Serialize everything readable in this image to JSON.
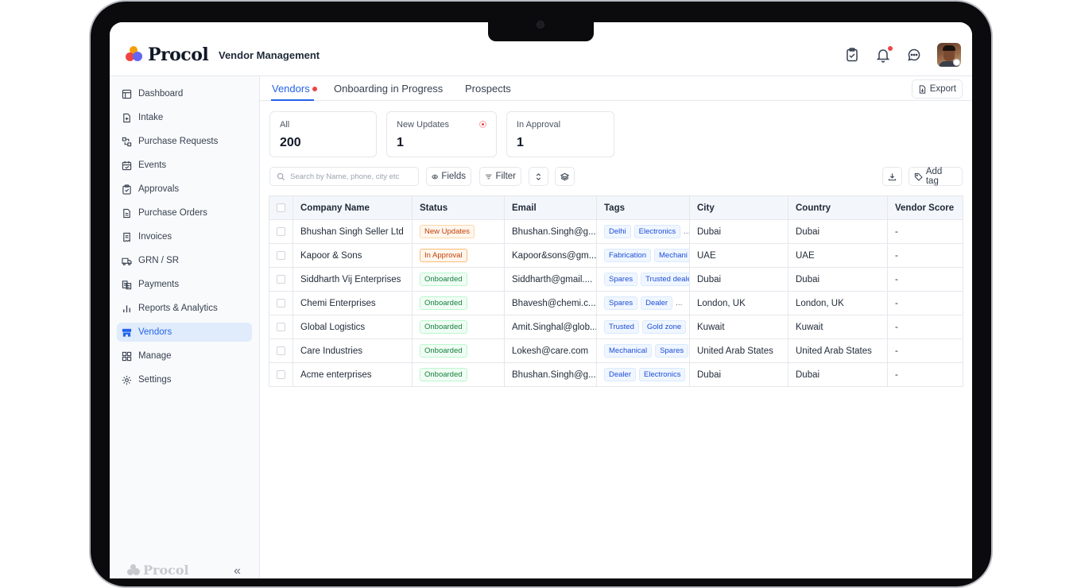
{
  "app": {
    "brand": "Procol",
    "title": "Vendor Management"
  },
  "sidebar": {
    "items": [
      {
        "label": "Dashboard",
        "icon": "dashboard-icon"
      },
      {
        "label": "Intake",
        "icon": "intake-icon"
      },
      {
        "label": "Purchase Requests",
        "icon": "purchase-requests-icon"
      },
      {
        "label": "Events",
        "icon": "events-icon"
      },
      {
        "label": "Approvals",
        "icon": "approvals-icon"
      },
      {
        "label": "Purchase Orders",
        "icon": "purchase-orders-icon"
      },
      {
        "label": "Invoices",
        "icon": "invoices-icon"
      },
      {
        "label": "GRN / SR",
        "icon": "truck-icon"
      },
      {
        "label": "Payments",
        "icon": "payments-icon"
      },
      {
        "label": "Reports & Analytics",
        "icon": "bar-chart-icon"
      },
      {
        "label": "Vendors",
        "icon": "store-icon",
        "active": true
      },
      {
        "label": "Manage",
        "icon": "grid-icon"
      },
      {
        "label": "Settings",
        "icon": "gear-icon"
      }
    ],
    "footer_brand": "Procol",
    "collapse_label": "«"
  },
  "tabs": [
    {
      "label": "Vendors",
      "active": true,
      "dot": true
    },
    {
      "label": "Onboarding in Progress"
    },
    {
      "label": "Prospects"
    }
  ],
  "export_label": "Export",
  "cards": [
    {
      "label": "All",
      "value": "200"
    },
    {
      "label": "New Updates",
      "value": "1"
    },
    {
      "label": "In Approval",
      "value": "1"
    }
  ],
  "toolbar": {
    "search_placeholder": "Search by Name, phone, city etc",
    "fields_label": "Fields",
    "filter_label": "Filter",
    "add_tag_label": "Add tag"
  },
  "table": {
    "columns": [
      "Company Name",
      "Status",
      "Email",
      "Tags",
      "City",
      "Country",
      "Vendor Score"
    ],
    "rows": [
      {
        "company": "Bhushan Singh Seller Ltd",
        "status": "New Updates",
        "status_kind": "new",
        "email": "Bhushan.Singh@g...",
        "tags": [
          "Delhi",
          "Electronics"
        ],
        "more": "...",
        "city": "Dubai",
        "country": "Dubai",
        "score": "-"
      },
      {
        "company": "Kapoor & Sons",
        "status": "In Approval",
        "status_kind": "appr",
        "email": "Kapoor&sons@gm...",
        "tags": [
          "Fabrication",
          "Mechani"
        ],
        "more": "",
        "city": "UAE",
        "country": "UAE",
        "score": "-"
      },
      {
        "company": "Siddharth Vij Enterprises",
        "status": "Onboarded",
        "status_kind": "onb",
        "email": "Siddharth@gmail....",
        "tags": [
          "Spares",
          "Trusted deale"
        ],
        "more": "",
        "city": "Dubai",
        "country": "Dubai",
        "score": "-"
      },
      {
        "company": "Chemi Enterprises",
        "status": "Onboarded",
        "status_kind": "onb",
        "email": "Bhavesh@chemi.c...",
        "tags": [
          "Spares",
          "Dealer"
        ],
        "more": "...",
        "city": "London, UK",
        "country": "London, UK",
        "score": "-"
      },
      {
        "company": "Global Logistics",
        "status": "Onboarded",
        "status_kind": "onb",
        "email": "Amit.Singhal@glob...",
        "tags": [
          "Trusted",
          "Gold zone"
        ],
        "more": "",
        "city": "Kuwait",
        "country": "Kuwait",
        "score": "-"
      },
      {
        "company": "Care Industries",
        "status": "Onboarded",
        "status_kind": "onb",
        "email": "Lokesh@care.com",
        "tags": [
          "Mechanical",
          "Spares"
        ],
        "more": "",
        "city": "United Arab States",
        "country": "United Arab States",
        "score": "-"
      },
      {
        "company": "Acme enterprises",
        "status": "Onboarded",
        "status_kind": "onb",
        "email": "Bhushan.Singh@g...",
        "tags": [
          "Dealer",
          "Electronics"
        ],
        "more": "",
        "city": "Dubai",
        "country": "Dubai",
        "score": "-"
      }
    ]
  },
  "colors": {
    "accent": "#2563eb",
    "active_nav_bg": "#e0ecfb",
    "notification": "#ef4444",
    "onboarded": "#15803d",
    "pending": "#c2410c"
  }
}
